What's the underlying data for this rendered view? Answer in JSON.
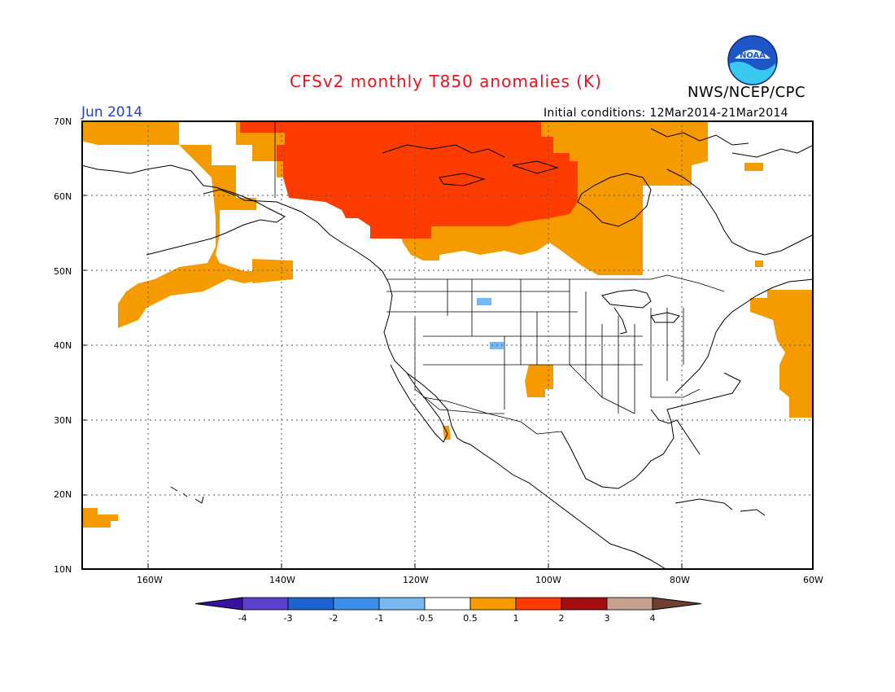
{
  "header": {
    "title": "CFSv2 monthly T850 anomalies (K)",
    "agency": "NWS/NCEP/CPC",
    "logo_text": "NOAA",
    "month": "Jun 2014",
    "initial_conditions": "Initial conditions: 12Mar2014-21Mar2014"
  },
  "map": {
    "lat_labels": [
      "70N",
      "60N",
      "50N",
      "40N",
      "30N",
      "20N",
      "10N"
    ],
    "lon_labels": [
      "160W",
      "140W",
      "120W",
      "100W",
      "80W",
      "60W"
    ],
    "extent": {
      "lon_min": -172,
      "lon_max": -60,
      "lat_min": 10,
      "lat_max": 70
    }
  },
  "legend": {
    "labels": [
      "-4",
      "-3",
      "-2",
      "-1",
      "-0.5",
      "0.5",
      "1",
      "2",
      "3",
      "4"
    ],
    "colors": [
      "#3a10a0",
      "#5a3fd0",
      "#1e62d0",
      "#3a8fe8",
      "#78b8f0",
      "#ffffff",
      "#f59b00",
      "#ff3c00",
      "#a30e10",
      "#c8a090",
      "#6e4030"
    ]
  },
  "colors": {
    "anomaly_0_5_to_1": "#f59b00",
    "anomaly_1_to_2": "#ff3c00",
    "anomaly_neg_0_5_to_neg_1": "#78b8f0",
    "title": "#e8141e",
    "month": "#1f3fd8"
  }
}
